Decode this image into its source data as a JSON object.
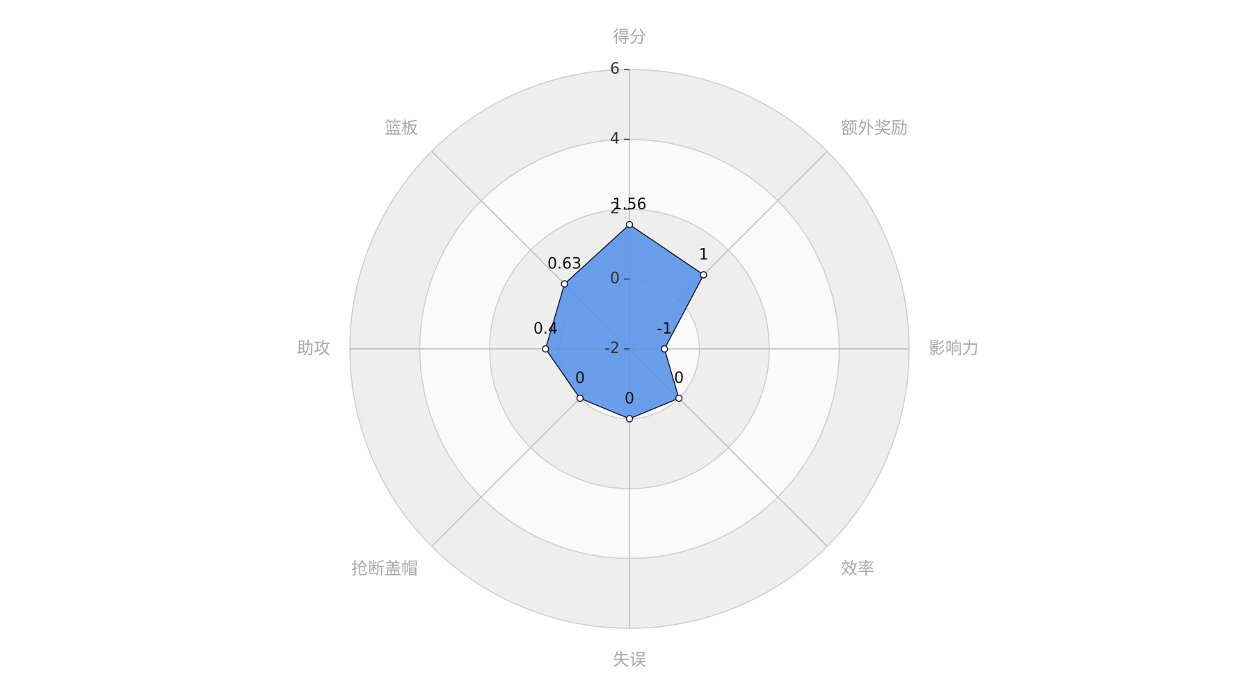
{
  "chart_data": {
    "type": "radar",
    "indicators": [
      "得分",
      "额外奖励",
      "影响力",
      "效率",
      "失误",
      "抢断盖帽",
      "助攻",
      "篮板"
    ],
    "values": [
      1.56,
      1,
      -1,
      0,
      0,
      0,
      0.4,
      0.63
    ],
    "color": "#5b93e8",
    "rlim": [
      -2,
      6
    ],
    "rticks": [
      -2,
      0,
      2,
      4,
      6
    ],
    "split_area_colors": [
      "#fafafa",
      "#eeeeee"
    ]
  }
}
